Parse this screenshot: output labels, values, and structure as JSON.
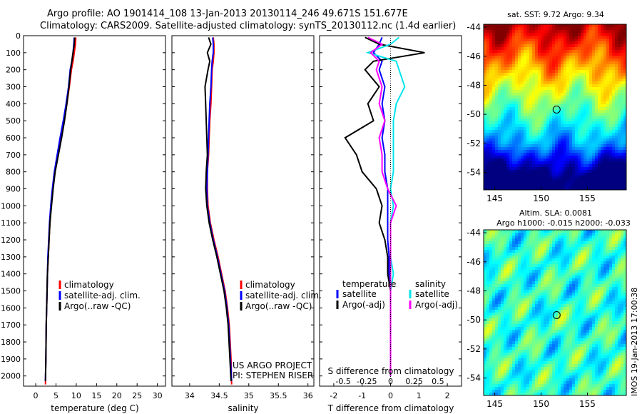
{
  "header": {
    "line1": "Argo profile: AO 1901414_108 13-Jan-2013 20130114_246 49.671S 151.677E",
    "line2": "Climatology: CARS2009. Satellite-adjusted climatology: synTS_20130112.nc (1.4d earlier)"
  },
  "colors": {
    "climatology": "#ff0000",
    "satellite": "#0000ff",
    "argo": "#000000",
    "sat_salinity": "#00e5ee",
    "argo_salinity": "#ff00ff"
  },
  "chart_data": [
    {
      "type": "line",
      "xlabel": "temperature (deg C)",
      "xticks": [
        "0",
        "5",
        "10",
        "15",
        "20",
        "25",
        "30"
      ],
      "xlim": [
        -3,
        32
      ],
      "ylim": [
        2060,
        0
      ],
      "yticks": [
        "0",
        "100",
        "200",
        "300",
        "400",
        "500",
        "600",
        "700",
        "800",
        "900",
        "1000",
        "1100",
        "1200",
        "1300",
        "1400",
        "1500",
        "1600",
        "1700",
        "1800",
        "1900",
        "2000"
      ],
      "legend": [
        "climatology",
        "satellite-adj. clim.",
        "Argo(..raw -QC)"
      ],
      "series": [
        {
          "name": "climatology",
          "color": "#ff0000",
          "x": [
            9.9,
            9.8,
            9.5,
            9.2,
            8.8,
            8.3,
            7.7,
            7.0,
            6.3,
            5.5,
            4.8,
            4.2,
            3.8,
            3.5,
            3.3,
            3.1,
            2.9,
            2.8,
            2.7,
            2.6,
            2.5,
            2.4
          ],
          "y": [
            10,
            50,
            100,
            150,
            200,
            300,
            400,
            500,
            600,
            700,
            800,
            900,
            1000,
            1100,
            1200,
            1300,
            1400,
            1500,
            1600,
            1700,
            1900,
            2050
          ]
        },
        {
          "name": "satellite-adj. clim.",
          "color": "#0000ff",
          "x": [
            9.5,
            9.4,
            9.2,
            8.9,
            8.5,
            8.1,
            7.5,
            6.8,
            6.0,
            5.3,
            4.6,
            4.1,
            3.7,
            3.4,
            3.2,
            3.0,
            2.9,
            2.8,
            2.7,
            2.6,
            2.5,
            2.4
          ],
          "y": [
            10,
            50,
            100,
            150,
            200,
            300,
            400,
            500,
            600,
            700,
            800,
            900,
            1000,
            1100,
            1200,
            1300,
            1400,
            1500,
            1600,
            1700,
            1900,
            2030
          ]
        },
        {
          "name": "Argo(..raw -QC)",
          "color": "#000000",
          "x": [
            9.6,
            9.5,
            9.2,
            8.9,
            8.6,
            8.2,
            7.7,
            7.1,
            6.4,
            5.6,
            4.8,
            4.3,
            3.9,
            3.5,
            3.3,
            3.1,
            2.9,
            2.8,
            2.7,
            2.6,
            2.5,
            2.4
          ],
          "y": [
            10,
            50,
            100,
            150,
            200,
            300,
            400,
            500,
            600,
            700,
            800,
            900,
            1000,
            1100,
            1200,
            1300,
            1400,
            1500,
            1600,
            1700,
            1900,
            2030
          ]
        }
      ]
    },
    {
      "type": "line",
      "xlabel": "salinity",
      "xticks": [
        "34",
        "34.5",
        "35",
        "35.5",
        "36"
      ],
      "xlim": [
        33.7,
        36.1
      ],
      "ylim": [
        2060,
        0
      ],
      "legend": [
        "climatology",
        "satellite-adj. clim.",
        "Argo(..raw -QC)"
      ],
      "annotation": [
        "US ARGO PROJECT",
        "PI: STEPHEN RISER"
      ],
      "series": [
        {
          "name": "climatology",
          "color": "#ff0000",
          "x": [
            34.4,
            34.41,
            34.41,
            34.4,
            34.38,
            34.37,
            34.36,
            34.34,
            34.33,
            34.32,
            34.3,
            34.3,
            34.31,
            34.35,
            34.41,
            34.48,
            34.54,
            34.6,
            34.64,
            34.67,
            34.7,
            34.71
          ],
          "y": [
            10,
            50,
            100,
            150,
            200,
            300,
            400,
            500,
            600,
            700,
            800,
            900,
            1000,
            1100,
            1200,
            1300,
            1400,
            1500,
            1600,
            1700,
            1900,
            2050
          ]
        },
        {
          "name": "satellite-adj. clim.",
          "color": "#0000ff",
          "x": [
            34.39,
            34.4,
            34.4,
            34.38,
            34.37,
            34.36,
            34.34,
            34.33,
            34.32,
            34.31,
            34.3,
            34.29,
            34.3,
            34.34,
            34.4,
            34.47,
            34.53,
            34.59,
            34.63,
            34.66,
            34.69,
            34.71
          ],
          "y": [
            10,
            50,
            100,
            150,
            200,
            300,
            400,
            500,
            600,
            700,
            800,
            900,
            1000,
            1100,
            1200,
            1300,
            1400,
            1500,
            1600,
            1700,
            1900,
            2030
          ]
        },
        {
          "name": "Argo(..raw -QC)",
          "color": "#000000",
          "x": [
            34.32,
            34.36,
            34.3,
            34.34,
            34.31,
            34.26,
            34.27,
            34.28,
            34.29,
            34.3,
            34.28,
            34.27,
            34.29,
            34.33,
            34.39,
            34.46,
            34.52,
            34.58,
            34.62,
            34.65,
            34.68,
            34.7
          ],
          "y": [
            10,
            50,
            100,
            150,
            200,
            300,
            400,
            500,
            600,
            700,
            800,
            900,
            1000,
            1100,
            1200,
            1300,
            1400,
            1500,
            1600,
            1700,
            1900,
            2030
          ]
        }
      ]
    },
    {
      "type": "line",
      "xlabel": "T difference from climatology",
      "xlabel_top": "S difference from climatology",
      "xticks": [
        "-2",
        "-1",
        "0",
        "1",
        "2"
      ],
      "xticks_top": [
        "-0.5",
        "-0.25",
        "0",
        "0.25",
        "0.5"
      ],
      "xlim": [
        -2.5,
        2.5
      ],
      "ylim": [
        2060,
        0
      ],
      "legend_temperature": {
        "title": "temperature",
        "items": [
          "satellite",
          "Argo(-adj)"
        ]
      },
      "legend_salinity": {
        "title": "salinity",
        "items": [
          "satellite",
          "Argo(-adj)"
        ]
      },
      "series": [
        {
          "name": "satellite",
          "color": "#0000ff",
          "x": [
            -0.3,
            -0.4,
            -0.6,
            -0.3,
            -0.4,
            -0.2,
            -0.3,
            -0.2,
            -0.3,
            -0.2,
            -0.2,
            -0.1,
            -0.1,
            -0.1,
            -0.1,
            -0.05,
            -0.05,
            0,
            0,
            0,
            0
          ],
          "y": [
            10,
            50,
            100,
            150,
            200,
            300,
            400,
            500,
            600,
            700,
            800,
            900,
            1000,
            1100,
            1200,
            1300,
            1400,
            1500,
            1600,
            1800,
            2000
          ]
        },
        {
          "name": "Argo(-adj)",
          "color": "#000000",
          "x": [
            -0.9,
            -0.4,
            1.2,
            -0.6,
            -0.9,
            -0.4,
            -0.8,
            -0.6,
            -1.6,
            -1.2,
            -1.0,
            -0.5,
            -0.3,
            -0.4,
            -0.2,
            -0.1,
            -0.1,
            0,
            0,
            0,
            0
          ],
          "y": [
            10,
            50,
            100,
            150,
            200,
            300,
            400,
            500,
            600,
            700,
            800,
            900,
            1000,
            1100,
            1200,
            1300,
            1400,
            1500,
            1600,
            1800,
            2000
          ]
        },
        {
          "name": "satellite",
          "color": "#00e5ee",
          "x": [
            0.3,
            0.0,
            -0.8,
            0.2,
            0.3,
            0.5,
            0.2,
            0.1,
            0.1,
            0.1,
            0.1,
            0.0,
            0.1,
            0.0,
            0.0,
            0.0,
            0.1,
            0.0,
            0.0,
            0.0,
            0.0
          ],
          "y": [
            10,
            50,
            100,
            150,
            200,
            300,
            400,
            500,
            600,
            700,
            800,
            900,
            1000,
            1100,
            1200,
            1300,
            1400,
            1500,
            1600,
            1800,
            2000
          ]
        },
        {
          "name": "Argo(-adj)",
          "color": "#ff00ff",
          "x": [
            -0.8,
            -0.3,
            -0.7,
            -0.4,
            -0.5,
            -0.3,
            -0.4,
            -0.2,
            -0.4,
            -0.3,
            -0.3,
            -0.1,
            0.2,
            0.0,
            0.0,
            0.0,
            0.0,
            0.0,
            0.0,
            0.0,
            0.0
          ],
          "y": [
            10,
            50,
            100,
            150,
            200,
            300,
            400,
            500,
            600,
            700,
            800,
            900,
            1000,
            1100,
            1200,
            1300,
            1400,
            1500,
            1600,
            1800,
            2000
          ]
        }
      ]
    },
    {
      "type": "heatmap",
      "title": "sat. SST: 9.72  Argo: 9.34",
      "xticks": [
        "145",
        "150",
        "155"
      ],
      "yticks": [
        "-44",
        "-46",
        "-48",
        "-50",
        "-52",
        "-54"
      ],
      "xlim": [
        143.8,
        159.2
      ],
      "ylim": [
        -55.2,
        -43.8
      ],
      "marker": {
        "lon": 151.677,
        "lat": -49.671
      },
      "colormap": "jet"
    },
    {
      "type": "heatmap",
      "title": "Altim. SLA: 0.0081",
      "subtitle": "Argo h1000: -0.015 h2000: -0.033",
      "xticks": [
        "145",
        "150",
        "155"
      ],
      "yticks": [
        "-44",
        "-46",
        "-48",
        "-50",
        "-52",
        "-54"
      ],
      "xlim": [
        143.8,
        159.2
      ],
      "ylim": [
        -55.2,
        -43.8
      ],
      "marker": {
        "lon": 151.677,
        "lat": -49.671
      },
      "colormap": "jet"
    }
  ],
  "side_label": "IMOS 19-Jan-2013 17:00:38"
}
